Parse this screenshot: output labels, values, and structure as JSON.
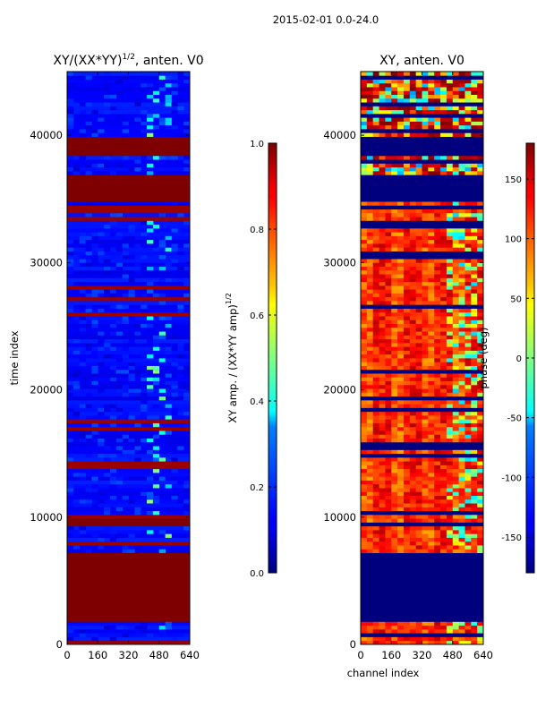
{
  "figure": {
    "suptitle": "2015-02-01 0.0-24.0",
    "xlabel": "channel index",
    "ylabel": "time index"
  },
  "colors": {
    "jet_dark_blue": "#00007f",
    "jet_blue": "#0000ff",
    "jet_cyan": "#00ffff",
    "jet_yellow": "#ffff00",
    "jet_red": "#ff0000",
    "jet_dark_red": "#7f0000"
  },
  "chart_data": [
    {
      "type": "heatmap",
      "title_main": "XY/(XX*YY)",
      "title_sup": "1/2",
      "title_rest": ", anten. V0",
      "xlabel": "channel index",
      "ylabel": "time index",
      "xlim": [
        0,
        640
      ],
      "ylim": [
        0,
        45000
      ],
      "xticks": [
        0,
        160,
        320,
        480,
        640
      ],
      "yticks": [
        0,
        10000,
        20000,
        30000,
        40000
      ],
      "colorbar": {
        "label_main": "XY amp. / (XX*YY amp)",
        "label_sup": "1/2",
        "min": 0.0,
        "max": 1.0,
        "ticks": [
          "0.0",
          "0.2",
          "0.4",
          "0.6",
          "0.8",
          "1.0"
        ]
      },
      "saturated_time_bands": [
        [
          1700,
          7200
        ],
        [
          9300,
          10000
        ],
        [
          34800,
          37000
        ],
        [
          38300,
          40000
        ]
      ],
      "features": "mostly low amplitude (0.0-0.2) with bright channel columns near 420-520 and frequent saturated horizontal stripes"
    },
    {
      "type": "heatmap",
      "title": "XY, anten. V0",
      "xlabel": "channel index",
      "ylabel": "",
      "xlim": [
        0,
        640
      ],
      "ylim": [
        0,
        45000
      ],
      "xticks": [
        0,
        160,
        320,
        480,
        640
      ],
      "yticks": [
        0,
        10000,
        20000,
        30000,
        40000
      ],
      "colorbar": {
        "label": "phase (deg)",
        "min": -180,
        "max": 180,
        "ticks": [
          "-150",
          "-100",
          "-50",
          "0",
          "50",
          "100",
          "150"
        ]
      },
      "masked_time_bands": [
        [
          1700,
          7200
        ],
        [
          34800,
          37000
        ],
        [
          38300,
          40000
        ]
      ],
      "features": "phases mostly +100 to +180 deg between 7000 and 35000, alternating with masked low-value bands"
    }
  ]
}
